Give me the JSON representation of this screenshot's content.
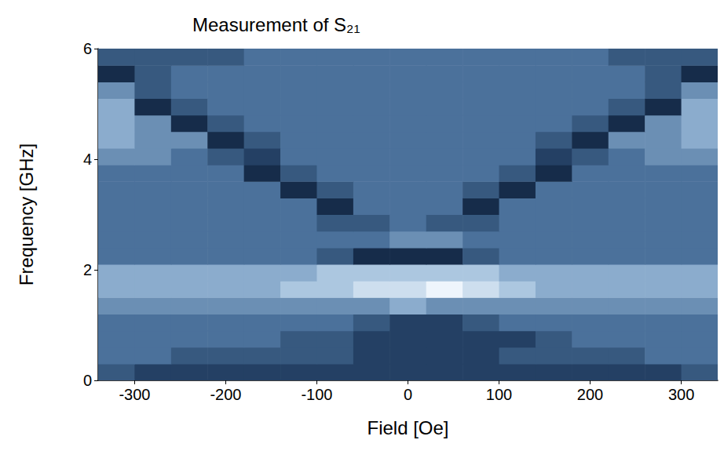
{
  "chart_data": {
    "type": "heatmap",
    "title": "Measurement of S₂₁",
    "x_label": "Field [Oe]",
    "y_label": "Frequency [GHz]",
    "xlim": [
      -340,
      340
    ],
    "xticks": [
      -300,
      -200,
      -100,
      0,
      100,
      200,
      300
    ],
    "ylim": [
      0,
      6
    ],
    "yticks": [
      0,
      2,
      4,
      6
    ],
    "grid": false,
    "zlim": [
      0,
      10
    ],
    "x": [
      -320,
      -280,
      -240,
      -200,
      -160,
      -120,
      -80,
      -40,
      0,
      40,
      80,
      120,
      160,
      200,
      240,
      280,
      320
    ],
    "y": [
      0.15,
      0.45,
      0.75,
      1.05,
      1.35,
      1.65,
      1.95,
      2.25,
      2.55,
      2.85,
      3.15,
      3.45,
      3.75,
      4.05,
      4.35,
      4.65,
      4.95,
      5.25,
      5.55,
      5.85
    ],
    "z": [
      [
        4,
        3,
        3,
        3,
        3,
        3,
        3,
        3,
        3,
        3,
        3,
        3,
        3,
        3,
        3,
        3,
        4
      ],
      [
        5,
        5,
        4,
        4,
        4,
        4,
        4,
        3,
        3,
        3,
        3,
        4,
        4,
        4,
        4,
        5,
        5
      ],
      [
        5,
        5,
        5,
        5,
        5,
        4,
        4,
        3,
        3,
        3,
        3,
        3,
        4,
        5,
        5,
        5,
        5
      ],
      [
        5,
        5,
        5,
        5,
        5,
        5,
        5,
        4,
        3,
        3,
        4,
        5,
        5,
        5,
        5,
        5,
        5
      ],
      [
        6,
        6,
        6,
        6,
        6,
        6,
        6,
        6,
        7,
        6,
        6,
        6,
        6,
        6,
        6,
        6,
        6
      ],
      [
        7,
        7,
        7,
        7,
        7,
        8,
        8,
        9,
        9,
        10,
        9,
        8,
        7,
        7,
        7,
        7,
        7
      ],
      [
        7,
        7,
        7,
        7,
        7,
        7,
        8,
        8,
        8,
        8,
        8,
        7,
        7,
        7,
        7,
        7,
        7
      ],
      [
        5,
        5,
        5,
        5,
        5,
        5,
        4,
        2,
        2,
        2,
        4,
        5,
        5,
        5,
        5,
        5,
        5
      ],
      [
        5,
        5,
        5,
        5,
        5,
        5,
        5,
        5,
        6,
        6,
        5,
        5,
        5,
        5,
        5,
        5,
        5
      ],
      [
        5,
        5,
        5,
        5,
        5,
        5,
        4,
        4,
        5,
        4,
        4,
        5,
        5,
        5,
        5,
        5,
        5
      ],
      [
        5,
        5,
        5,
        5,
        5,
        5,
        2,
        5,
        5,
        5,
        2,
        5,
        5,
        5,
        5,
        5,
        5
      ],
      [
        5,
        5,
        5,
        5,
        5,
        2,
        4,
        5,
        5,
        5,
        4,
        2,
        5,
        5,
        5,
        5,
        5
      ],
      [
        5,
        5,
        5,
        5,
        2,
        4,
        5,
        5,
        5,
        5,
        5,
        4,
        2,
        5,
        5,
        5,
        5
      ],
      [
        6,
        6,
        5,
        4,
        3,
        5,
        5,
        5,
        5,
        5,
        5,
        5,
        3,
        4,
        5,
        6,
        6
      ],
      [
        7,
        6,
        6,
        2,
        4,
        5,
        5,
        5,
        5,
        5,
        5,
        5,
        4,
        2,
        6,
        6,
        7
      ],
      [
        7,
        6,
        2,
        4,
        5,
        5,
        5,
        5,
        5,
        5,
        5,
        5,
        5,
        4,
        2,
        6,
        7
      ],
      [
        7,
        2,
        4,
        5,
        5,
        5,
        5,
        5,
        5,
        5,
        5,
        5,
        5,
        5,
        4,
        2,
        7
      ],
      [
        6,
        4,
        5,
        5,
        5,
        5,
        5,
        5,
        5,
        5,
        5,
        5,
        5,
        5,
        5,
        4,
        6
      ],
      [
        2,
        4,
        5,
        5,
        5,
        5,
        5,
        5,
        5,
        5,
        5,
        5,
        5,
        5,
        5,
        4,
        2
      ],
      [
        4,
        4,
        4,
        4,
        5,
        5,
        5,
        5,
        5,
        5,
        5,
        5,
        5,
        5,
        4,
        4,
        4
      ]
    ]
  }
}
